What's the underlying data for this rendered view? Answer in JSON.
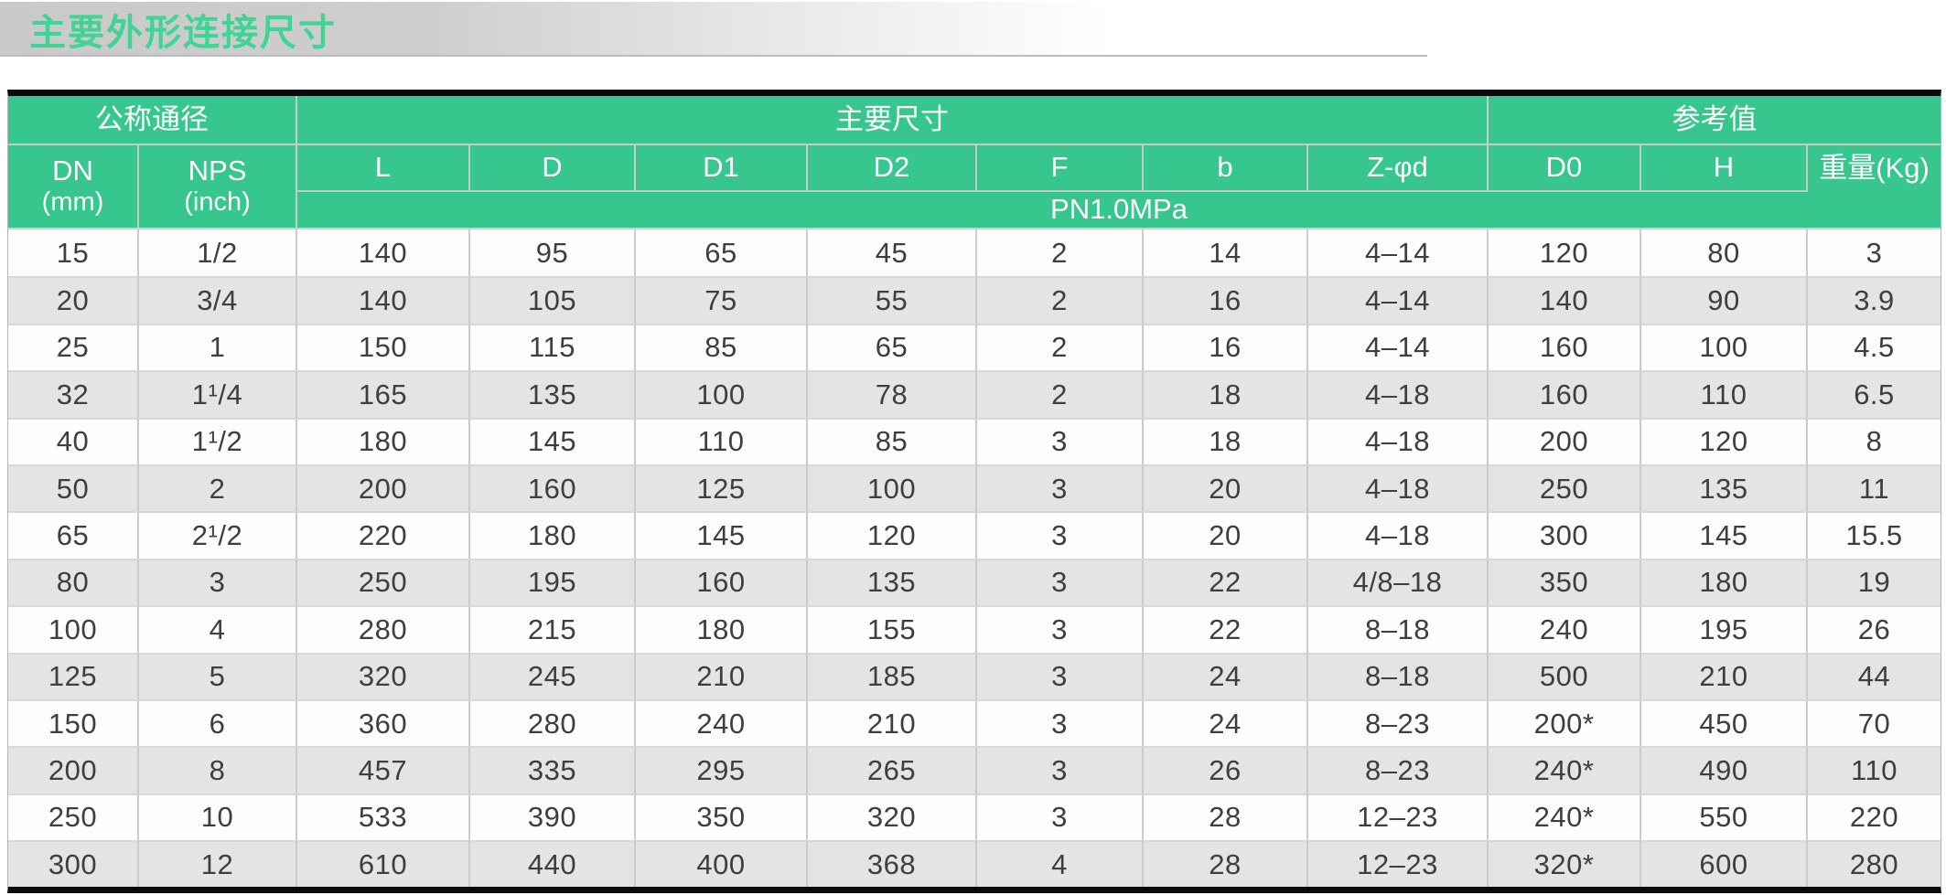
{
  "title": "主要外形连接尺寸",
  "colors": {
    "accent_green": "#36c68e",
    "title_green": "#3ed494",
    "alt_row_gray": "#e4e4e4",
    "border_black": "#0b0b0b",
    "text_gray": "#3e3e3e"
  },
  "table": {
    "group_headers": [
      "公称通径",
      "主要尺寸",
      "参考值"
    ],
    "columns": [
      {
        "label": "DN",
        "sub": "(mm)"
      },
      {
        "label": "NPS",
        "sub": "(inch)"
      },
      {
        "label": "L"
      },
      {
        "label": "D"
      },
      {
        "label": "D1"
      },
      {
        "label": "D2"
      },
      {
        "label": "F"
      },
      {
        "label": "b"
      },
      {
        "label": "Z-φd"
      },
      {
        "label": "D0"
      },
      {
        "label": "H"
      },
      {
        "label": "重量(Kg)"
      }
    ],
    "pressure_label": "PN1.0MPa",
    "rows": [
      [
        "15",
        "1/2",
        "140",
        "95",
        "65",
        "45",
        "2",
        "14",
        "4–14",
        "120",
        "80",
        "3"
      ],
      [
        "20",
        "3/4",
        "140",
        "105",
        "75",
        "55",
        "2",
        "16",
        "4–14",
        "140",
        "90",
        "3.9"
      ],
      [
        "25",
        "1",
        "150",
        "115",
        "85",
        "65",
        "2",
        "16",
        "4–14",
        "160",
        "100",
        "4.5"
      ],
      [
        "32",
        "1¹/4",
        "165",
        "135",
        "100",
        "78",
        "2",
        "18",
        "4–18",
        "160",
        "110",
        "6.5"
      ],
      [
        "40",
        "1¹/2",
        "180",
        "145",
        "110",
        "85",
        "3",
        "18",
        "4–18",
        "200",
        "120",
        "8"
      ],
      [
        "50",
        "2",
        "200",
        "160",
        "125",
        "100",
        "3",
        "20",
        "4–18",
        "250",
        "135",
        "11"
      ],
      [
        "65",
        "2¹/2",
        "220",
        "180",
        "145",
        "120",
        "3",
        "20",
        "4–18",
        "300",
        "145",
        "15.5"
      ],
      [
        "80",
        "3",
        "250",
        "195",
        "160",
        "135",
        "3",
        "22",
        "4/8–18",
        "350",
        "180",
        "19"
      ],
      [
        "100",
        "4",
        "280",
        "215",
        "180",
        "155",
        "3",
        "22",
        "8–18",
        "240",
        "195",
        "26"
      ],
      [
        "125",
        "5",
        "320",
        "245",
        "210",
        "185",
        "3",
        "24",
        "8–18",
        "500",
        "210",
        "44"
      ],
      [
        "150",
        "6",
        "360",
        "280",
        "240",
        "210",
        "3",
        "24",
        "8–23",
        "200*",
        "450",
        "70"
      ],
      [
        "200",
        "8",
        "457",
        "335",
        "295",
        "265",
        "3",
        "26",
        "8–23",
        "240*",
        "490",
        "110"
      ],
      [
        "250",
        "10",
        "533",
        "390",
        "350",
        "320",
        "3",
        "28",
        "12–23",
        "240*",
        "550",
        "220"
      ],
      [
        "300",
        "12",
        "610",
        "440",
        "400",
        "368",
        "4",
        "28",
        "12–23",
        "320*",
        "600",
        "280"
      ]
    ]
  }
}
